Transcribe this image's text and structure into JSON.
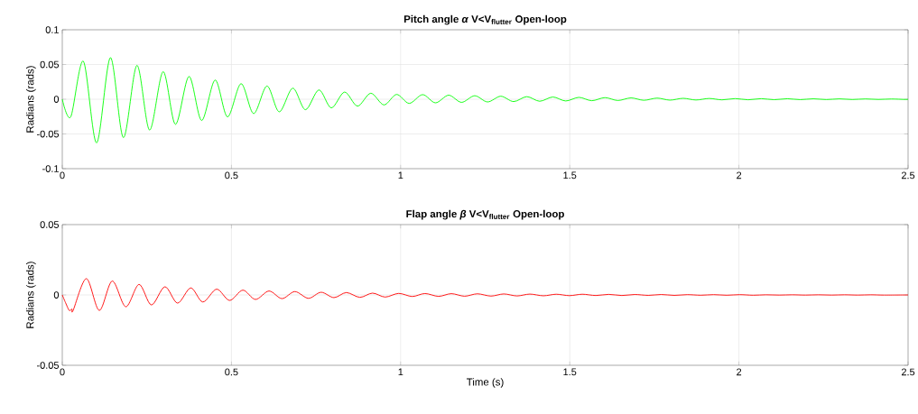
{
  "chart_data": [
    {
      "type": "line",
      "title": "Pitch angle *α*  V<V$_{flutter}$  Open-loop",
      "ylabel": "Radians (rads)",
      "xlim": [
        0,
        2.5
      ],
      "ylim": [
        -0.1,
        0.1
      ],
      "xticks": [
        0,
        0.5,
        1,
        1.5,
        2,
        2.5
      ],
      "yticks": [
        -0.1,
        -0.05,
        0,
        0.05,
        0.1
      ],
      "grid": true,
      "series": [
        {
          "color": "#00ff00",
          "x": [
            0,
            0.025,
            0.0623,
            0.1014,
            0.1423,
            0.1806,
            0.2206,
            0.258,
            0.298,
            0.3344,
            0.3745,
            0.4118,
            0.4517,
            0.4883,
            0.5283,
            0.5656,
            0.6049,
            0.6412,
            0.6812,
            0.7186,
            0.7585,
            0.7951,
            0.8343,
            0.8725,
            0.9117,
            0.9507,
            0.988,
            1.0254,
            1.065,
            1.103,
            1.142,
            1.18,
            1.219,
            1.257,
            1.296,
            1.334,
            1.373,
            1.411,
            1.45,
            1.488,
            1.527,
            1.565,
            1.604,
            1.642,
            1.681,
            1.719,
            1.758,
            1.796,
            1.835,
            1.873,
            1.912,
            1.95,
            1.989,
            2.027,
            2.066,
            2.104,
            2.143,
            2.181,
            2.22,
            2.258,
            2.297,
            2.335,
            2.374,
            2.412,
            2.451,
            2.489,
            2.5
          ],
          "values": [
            0,
            -0.0254,
            0.0547,
            -0.0629,
            0.0599,
            -0.0552,
            0.0487,
            -0.0444,
            0.0397,
            -0.0362,
            0.0328,
            -0.0306,
            0.0276,
            -0.0254,
            0.0224,
            -0.0207,
            0.019,
            -0.0181,
            0.0159,
            -0.0151,
            0.0134,
            -0.0125,
            0.0103,
            -0.0099,
            0.0086,
            -0.0082,
            0.0069,
            -0.006,
            0.0066,
            -0.0052,
            0.0058,
            -0.0045,
            0.005,
            -0.0039,
            0.0043,
            -0.0034,
            0.0037,
            -0.0029,
            0.0032,
            -0.0025,
            0.0027,
            -0.0021,
            0.0023,
            -0.0018,
            0.0019,
            -0.0015,
            0.0016,
            -0.0013,
            0.0013,
            -0.0011,
            0.0011,
            -0.0009,
            0.0009,
            -0.0008,
            0.0008,
            -0.0007,
            0.0007,
            -0.0006,
            0.0006,
            -0.0005,
            0.0005,
            -0.0004,
            0.0004,
            -0.0003,
            0.0003,
            -0.0003,
            -0.0002
          ]
        }
      ]
    },
    {
      "type": "line",
      "title": "Flap angle *β*  V<V$_{flutter}$  Open-loop",
      "ylabel": "Radians (rads)",
      "xlabel": "Time (s)",
      "xlim": [
        0,
        2.5
      ],
      "ylim": [
        -0.05,
        0.05
      ],
      "xticks": [
        0,
        0.5,
        1,
        1.5,
        2,
        2.5
      ],
      "yticks": [
        -0.05,
        0,
        0.05
      ],
      "grid": true,
      "series": [
        {
          "color": "#ff0000",
          "x": [
            0,
            0.0098,
            0.0205,
            0.0285,
            0.032,
            0.0712,
            0.1094,
            0.1476,
            0.1876,
            0.2268,
            0.2633,
            0.3033,
            0.3407,
            0.3797,
            0.4154,
            0.4562,
            0.4945,
            0.5336,
            0.571,
            0.611,
            0.6493,
            0.6875,
            0.7275,
            0.765,
            0.8031,
            0.8396,
            0.8796,
            0.917,
            0.9543,
            0.9944,
            1.0344,
            1.072,
            1.112,
            1.15,
            1.189,
            1.227,
            1.267,
            1.305,
            1.344,
            1.382,
            1.422,
            1.46,
            1.499,
            1.537,
            1.577,
            1.615,
            1.654,
            1.692,
            1.732,
            1.77,
            1.809,
            1.847,
            1.887,
            1.925,
            1.964,
            2.002,
            2.042,
            2.08,
            2.119,
            2.157,
            2.197,
            2.235,
            2.274,
            2.312,
            2.352,
            2.39,
            2.429,
            2.5
          ],
          "values": [
            0,
            -0.0056,
            -0.011,
            -0.01,
            -0.011,
            0.0116,
            -0.011,
            0.0099,
            -0.0084,
            0.0075,
            -0.0071,
            0.0058,
            -0.0058,
            0.005,
            -0.005,
            0.0041,
            -0.0039,
            0.0034,
            -0.0032,
            0.0028,
            -0.0026,
            0.0024,
            -0.0024,
            0.0019,
            -0.0019,
            0.0017,
            -0.0017,
            0.0013,
            -0.0015,
            0.0011,
            -0.0011,
            0.001,
            -0.001,
            0.0009,
            -0.0009,
            0.0008,
            -0.0008,
            0.0007,
            -0.0007,
            0.0006,
            -0.0006,
            0.0005,
            -0.0005,
            0.0005,
            -0.0004,
            0.0004,
            -0.0004,
            0.0003,
            -0.0003,
            0.0003,
            -0.0003,
            0.0002,
            -0.0002,
            0.0002,
            -0.0002,
            0.0002,
            -0.0002,
            0.0001,
            -0.0001,
            0.0001,
            -0.0001,
            0.0001,
            -0.0001,
            0.0001,
            -0.0001,
            0.0001,
            -0.0001,
            0
          ]
        }
      ]
    }
  ]
}
